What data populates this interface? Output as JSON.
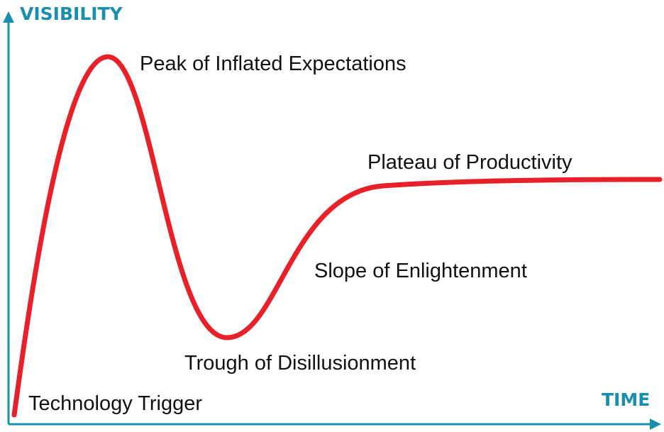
{
  "axes": {
    "y_label": "VISIBILITY",
    "x_label": "TIME"
  },
  "phases": [
    {
      "label": "Technology Trigger"
    },
    {
      "label": "Peak of Inflated Expectations"
    },
    {
      "label": "Trough of Disillusionment"
    },
    {
      "label": "Slope of Enlightenment"
    },
    {
      "label": "Plateau of Productivity"
    }
  ]
}
